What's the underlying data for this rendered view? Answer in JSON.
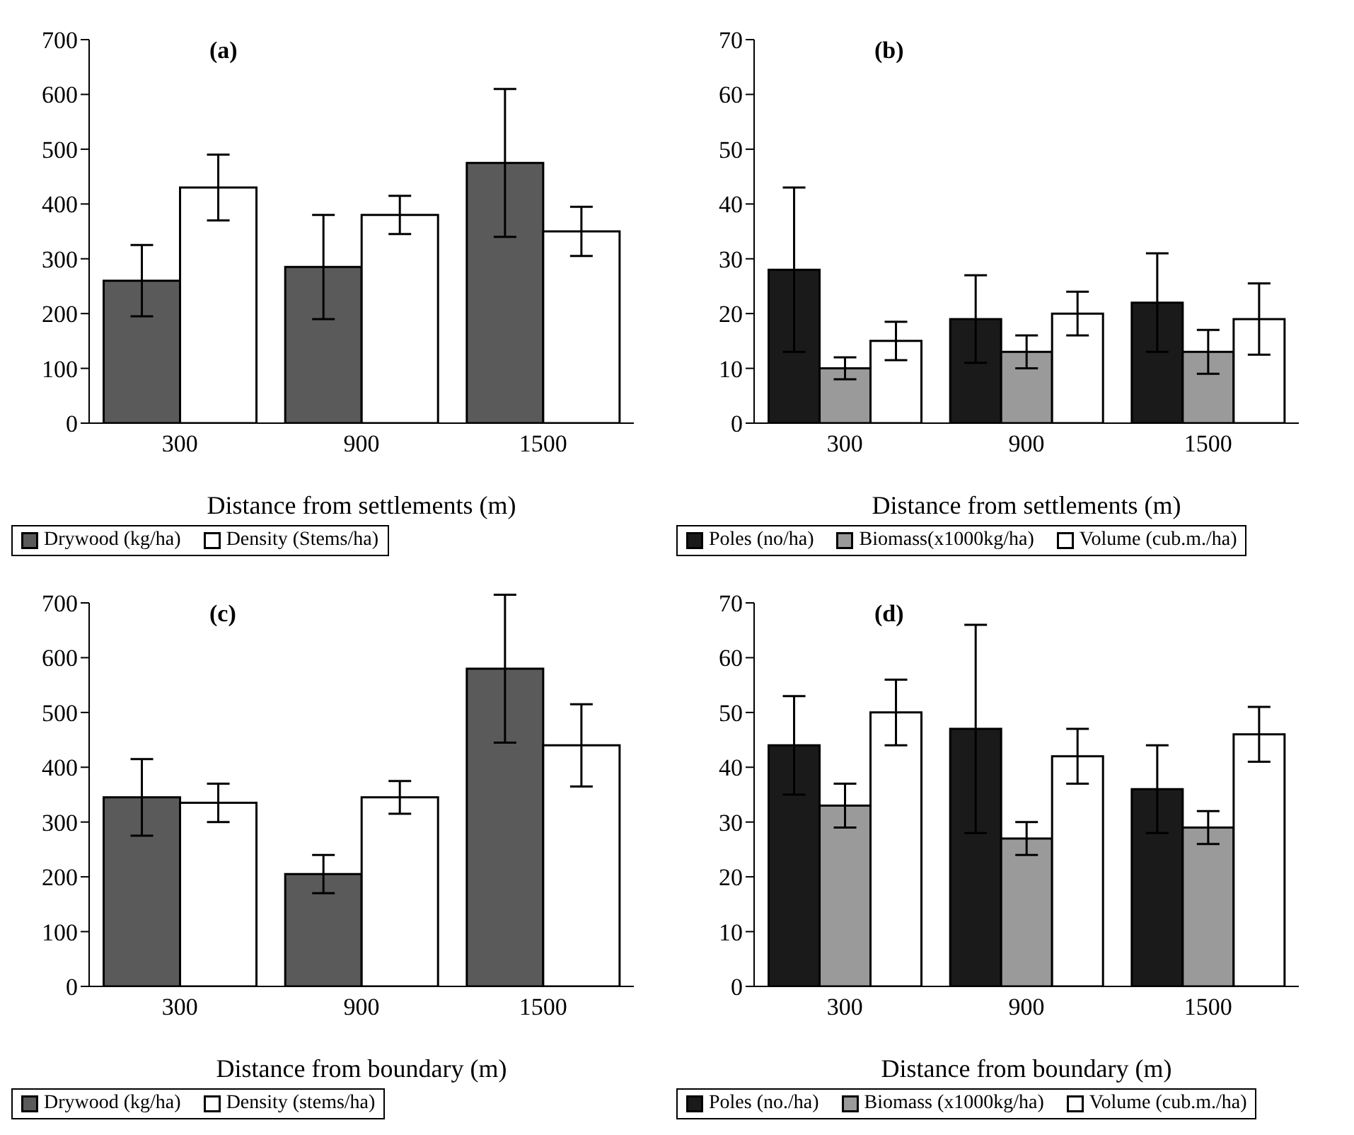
{
  "chart_data": [
    {
      "type": "bar",
      "title": "(a)",
      "xlabel": "Distance from settlements (m)",
      "categories": [
        "300",
        "900",
        "1500"
      ],
      "ylim": [
        0,
        700
      ],
      "yticks": [
        0,
        100,
        200,
        300,
        400,
        500,
        600,
        700
      ],
      "grid": false,
      "legend": "bottom",
      "series": [
        {
          "name": "Drywood (kg/ha)",
          "color": "#5a5a5a",
          "values": [
            260,
            285,
            475
          ],
          "errors": [
            65,
            95,
            135
          ]
        },
        {
          "name": "Density (Stems/ha)",
          "color": "#ffffff",
          "values": [
            430,
            380,
            350
          ],
          "errors": [
            60,
            35,
            45
          ]
        }
      ]
    },
    {
      "type": "bar",
      "title": "(b)",
      "xlabel": "Distance from settlements (m)",
      "categories": [
        "300",
        "900",
        "1500"
      ],
      "ylim": [
        0,
        70
      ],
      "yticks": [
        0,
        10,
        20,
        30,
        40,
        50,
        60,
        70
      ],
      "grid": false,
      "legend": "bottom",
      "series": [
        {
          "name": "Poles (no/ha)",
          "color": "#1a1a1a",
          "values": [
            28,
            19,
            22
          ],
          "errors": [
            15,
            8,
            9
          ]
        },
        {
          "name": "Biomass(x1000kg/ha)",
          "color": "#9a9a9a",
          "values": [
            10,
            13,
            13
          ],
          "errors": [
            2,
            3,
            4
          ]
        },
        {
          "name": "Volume (cub.m./ha)",
          "color": "#ffffff",
          "values": [
            15,
            20,
            19
          ],
          "errors": [
            3.5,
            4,
            6.5
          ]
        }
      ]
    },
    {
      "type": "bar",
      "title": "(c)",
      "xlabel": "Distance from boundary (m)",
      "categories": [
        "300",
        "900",
        "1500"
      ],
      "ylim": [
        0,
        700
      ],
      "yticks": [
        0,
        100,
        200,
        300,
        400,
        500,
        600,
        700
      ],
      "grid": false,
      "legend": "bottom",
      "series": [
        {
          "name": "Drywood (kg/ha)",
          "color": "#5a5a5a",
          "values": [
            345,
            205,
            580
          ],
          "errors": [
            70,
            35,
            135
          ]
        },
        {
          "name": "Density (stems/ha)",
          "color": "#ffffff",
          "values": [
            335,
            345,
            440
          ],
          "errors": [
            35,
            30,
            75
          ]
        }
      ]
    },
    {
      "type": "bar",
      "title": "(d)",
      "xlabel": "Distance from boundary (m)",
      "categories": [
        "300",
        "900",
        "1500"
      ],
      "ylim": [
        0,
        70
      ],
      "yticks": [
        0,
        10,
        20,
        30,
        40,
        50,
        60,
        70
      ],
      "grid": false,
      "legend": "bottom",
      "series": [
        {
          "name": "Poles (no./ha)",
          "color": "#1a1a1a",
          "values": [
            44,
            47,
            36
          ],
          "errors": [
            9,
            19,
            8
          ]
        },
        {
          "name": "Biomass (x1000kg/ha)",
          "color": "#9a9a9a",
          "values": [
            33,
            27,
            29
          ],
          "errors": [
            4,
            3,
            3
          ]
        },
        {
          "name": "Volume (cub.m./ha)",
          "color": "#ffffff",
          "values": [
            50,
            42,
            46
          ],
          "errors": [
            6,
            5,
            5
          ]
        }
      ]
    }
  ]
}
